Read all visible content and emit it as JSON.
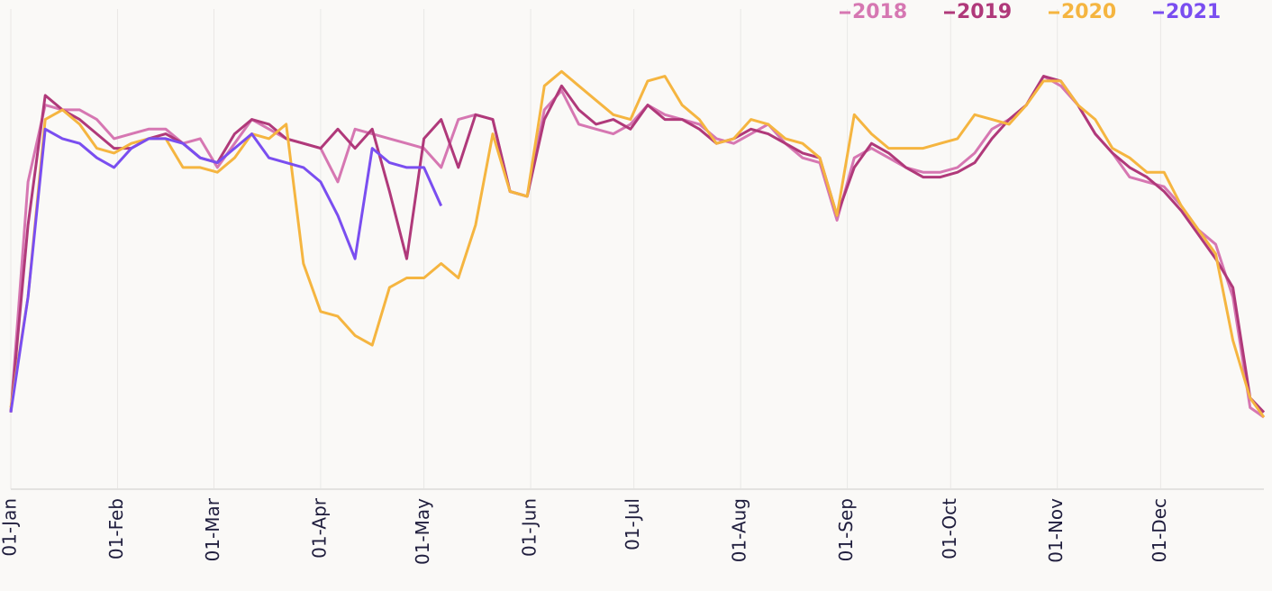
{
  "chart_data": {
    "type": "line",
    "xlim": [
      0,
      364
    ],
    "ylim": [
      0,
      100
    ],
    "xticks": [
      {
        "value": 0,
        "label": "01-Jan"
      },
      {
        "value": 31,
        "label": "01-Feb"
      },
      {
        "value": 59,
        "label": "01-Mar"
      },
      {
        "value": 90,
        "label": "01-Apr"
      },
      {
        "value": 120,
        "label": "01-May"
      },
      {
        "value": 151,
        "label": "01-Jun"
      },
      {
        "value": 181,
        "label": "01-Jul"
      },
      {
        "value": 212,
        "label": "01-Aug"
      },
      {
        "value": 243,
        "label": "01-Sep"
      },
      {
        "value": 273,
        "label": "01-Oct"
      },
      {
        "value": 304,
        "label": "01-Nov"
      },
      {
        "value": 334,
        "label": "01-Dec"
      }
    ],
    "grid": true,
    "legend": "top-right",
    "x": [
      0,
      5,
      10,
      15,
      20,
      25,
      30,
      35,
      40,
      45,
      50,
      55,
      60,
      65,
      70,
      75,
      80,
      85,
      90,
      95,
      100,
      105,
      110,
      115,
      120,
      125,
      130,
      135,
      140,
      145,
      150,
      155,
      160,
      165,
      170,
      175,
      180,
      185,
      190,
      195,
      200,
      205,
      210,
      215,
      220,
      225,
      230,
      235,
      240,
      245,
      250,
      255,
      260,
      265,
      270,
      275,
      280,
      285,
      290,
      295,
      300,
      305,
      310,
      315,
      320,
      325,
      330,
      335,
      340,
      345,
      350,
      355,
      360,
      364
    ],
    "series": [
      {
        "name": "2018",
        "color": "#d677b2",
        "values": [
          16,
          64,
          80,
          79,
          79,
          77,
          73,
          74,
          75,
          75,
          72,
          73,
          67,
          72,
          77,
          75,
          73,
          72,
          71,
          64,
          75,
          74,
          73,
          72,
          71,
          67,
          77,
          78,
          77,
          62,
          61,
          79,
          83,
          76,
          75,
          74,
          76,
          80,
          78,
          77,
          76,
          73,
          72,
          74,
          76,
          72,
          69,
          68,
          56,
          69,
          71,
          69,
          67,
          66,
          66,
          67,
          70,
          75,
          77,
          80,
          86,
          84,
          80,
          74,
          70,
          65,
          64,
          63,
          59,
          54,
          51,
          40,
          17,
          15
        ]
      },
      {
        "name": "2019",
        "color": "#b0397a",
        "values": [
          16,
          55,
          82,
          79,
          77,
          74,
          71,
          71,
          73,
          74,
          72,
          69,
          68,
          74,
          77,
          76,
          73,
          72,
          71,
          75,
          71,
          75,
          62,
          48,
          73,
          77,
          67,
          78,
          77,
          62,
          61,
          77,
          84,
          79,
          76,
          77,
          75,
          80,
          77,
          77,
          75,
          72,
          73,
          75,
          74,
          72,
          70,
          69,
          57,
          67,
          72,
          70,
          67,
          65,
          65,
          66,
          68,
          73,
          77,
          80,
          86,
          85,
          80,
          74,
          70,
          67,
          65,
          62,
          58,
          53,
          48,
          42,
          19,
          16
        ]
      },
      {
        "name": "2020",
        "color": "#f5b540",
        "values": [
          17,
          40,
          77,
          79,
          76,
          71,
          70,
          72,
          73,
          73,
          67,
          67,
          66,
          69,
          74,
          73,
          76,
          47,
          37,
          36,
          32,
          30,
          42,
          44,
          44,
          47,
          44,
          55,
          74,
          62,
          61,
          84,
          87,
          84,
          81,
          78,
          77,
          85,
          86,
          80,
          77,
          72,
          73,
          77,
          76,
          73,
          72,
          69,
          57,
          78,
          74,
          71,
          71,
          71,
          72,
          73,
          78,
          77,
          76,
          80,
          85,
          85,
          80,
          77,
          71,
          69,
          66,
          66,
          59,
          54,
          49,
          31,
          19,
          15
        ]
      },
      {
        "name": "2021",
        "color": "#7a4ef0",
        "values": [
          16,
          40,
          75,
          73,
          72,
          69,
          67,
          71,
          73,
          73,
          72,
          69,
          68,
          71,
          74,
          69,
          68,
          67,
          64,
          57,
          48,
          71,
          68,
          67,
          67,
          59,
          null,
          null,
          null,
          null,
          null,
          null,
          null,
          null,
          null,
          null,
          null,
          null,
          null,
          null,
          null,
          null,
          null,
          null,
          null,
          null,
          null,
          null,
          null,
          null,
          null,
          null,
          null,
          null,
          null,
          null,
          null,
          null,
          null,
          null,
          null,
          null,
          null,
          null,
          null,
          null,
          null,
          null,
          null,
          null,
          null,
          null,
          null,
          null
        ]
      }
    ]
  }
}
